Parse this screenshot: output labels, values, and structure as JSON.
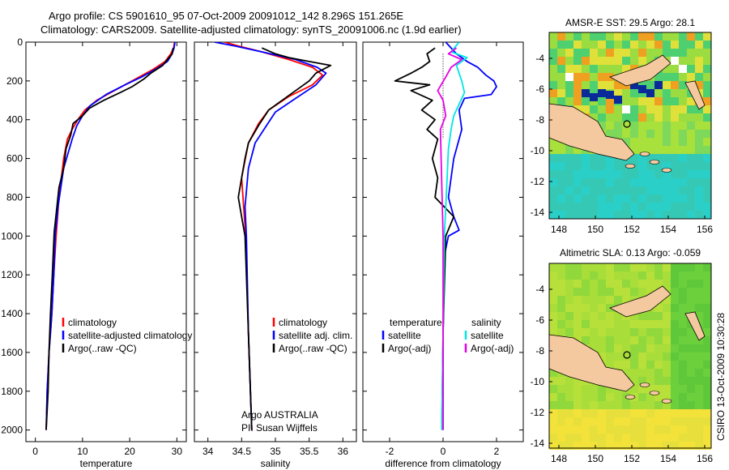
{
  "title": {
    "line1": "Argo profile: CS 5901610_95 07-Oct-2009 20091012_142 8.296S 151.265E",
    "line2": "Climatology: CARS2009. Satellite-adjusted climatology: synTS_20091006.nc (1.9d earlier)"
  },
  "colors": {
    "clim": "#ff0000",
    "sat": "#0000ff",
    "argo": "#000000",
    "cyan": "#00e5e5",
    "magenta": "#e600e6",
    "land": "#f5c9a0"
  },
  "depth_axis": {
    "ticks": [
      0,
      200,
      400,
      600,
      800,
      1000,
      1200,
      1400,
      1600,
      1800,
      2000
    ],
    "range": [
      0,
      2060
    ]
  },
  "chart_data": [
    {
      "type": "line",
      "name": "temperature",
      "xlabel": "temperature",
      "xlim": [
        -2,
        32
      ],
      "xticks": [
        0,
        10,
        20,
        30
      ],
      "legend": [
        "climatology",
        "satellite-adjusted climatology",
        "Argo(..raw -QC)"
      ],
      "series": [
        {
          "name": "climatology",
          "color": "#ff0000",
          "x": [
            29.5,
            29.3,
            28.7,
            27.5,
            25.0,
            22.0,
            19.0,
            16.0,
            13.0,
            10.5,
            9.0,
            7.8,
            6.8,
            6.0,
            5.0,
            4.4,
            3.9,
            3.5,
            3.2,
            2.9,
            2.7,
            2.5,
            2.4,
            2.3
          ],
          "y": [
            0,
            30,
            60,
            100,
            140,
            180,
            220,
            260,
            300,
            350,
            400,
            450,
            500,
            600,
            800,
            1000,
            1200,
            1400,
            1500,
            1600,
            1700,
            1800,
            1900,
            2000
          ]
        },
        {
          "name": "satellite-adjusted climatology",
          "color": "#0000ff",
          "x": [
            29.6,
            29.4,
            29.0,
            28.0,
            25.5,
            22.5,
            19.0,
            15.0,
            11.5,
            10.0,
            8.8,
            7.8,
            6.0,
            4.8,
            4.2,
            3.9,
            3.5,
            3.2,
            2.9,
            2.7,
            2.5,
            2.4,
            2.3
          ],
          "y": [
            0,
            30,
            60,
            100,
            140,
            180,
            220,
            270,
            330,
            380,
            430,
            500,
            650,
            850,
            1000,
            1200,
            1400,
            1500,
            1600,
            1700,
            1800,
            1900,
            2000
          ]
        },
        {
          "name": "Argo(..raw -QC)",
          "color": "#000000",
          "x": [
            29.2,
            29.0,
            28.0,
            27.0,
            24.5,
            23.0,
            20.5,
            18.0,
            14.5,
            11.5,
            10.0,
            8.0,
            7.5,
            6.5,
            6.0,
            5.0,
            4.0,
            3.6,
            3.2,
            2.9,
            2.7,
            2.4,
            2.3
          ],
          "y": [
            30,
            60,
            90,
            120,
            160,
            190,
            230,
            260,
            300,
            340,
            380,
            420,
            480,
            550,
            650,
            750,
            980,
            1200,
            1400,
            1600,
            1800,
            1950,
            2000
          ]
        }
      ]
    },
    {
      "type": "line",
      "name": "salinity",
      "xlabel": "salinity",
      "xlim": [
        33.8,
        36.2
      ],
      "xticks": [
        34,
        34.5,
        35,
        35.5,
        36
      ],
      "legend": [
        "climatology",
        "satellite adj. clim.",
        "Argo(..raw -QC)"
      ],
      "annotation": [
        "Argo AUSTRALIA",
        "PI: Susan Wijffels"
      ],
      "series": [
        {
          "name": "climatology",
          "color": "#ff0000",
          "x": [
            34.25,
            34.45,
            34.8,
            35.2,
            35.55,
            35.7,
            35.55,
            35.2,
            34.9,
            34.75,
            34.6,
            34.5,
            34.52,
            34.56,
            34.6,
            34.65
          ],
          "y": [
            0,
            20,
            50,
            90,
            130,
            170,
            220,
            280,
            350,
            420,
            520,
            700,
            800,
            1000,
            1500,
            2000
          ]
        },
        {
          "name": "satellite adj. clim.",
          "color": "#0000ff",
          "x": [
            34.1,
            34.4,
            34.8,
            35.3,
            35.62,
            35.75,
            35.6,
            35.3,
            35.0,
            34.85,
            34.7,
            34.6,
            34.55,
            34.57,
            34.6,
            34.65
          ],
          "y": [
            0,
            20,
            50,
            90,
            130,
            160,
            220,
            290,
            360,
            440,
            520,
            650,
            850,
            1000,
            1500,
            2000
          ]
        },
        {
          "name": "Argo(..raw -QC)",
          "color": "#000000",
          "x": [
            34.8,
            35.0,
            35.2,
            35.5,
            35.82,
            35.6,
            35.5,
            35.3,
            35.1,
            34.9,
            34.75,
            34.6,
            34.55,
            34.5,
            34.45,
            34.5,
            34.55,
            34.6,
            34.65
          ],
          "y": [
            30,
            60,
            80,
            100,
            120,
            160,
            200,
            250,
            300,
            350,
            430,
            520,
            600,
            700,
            800,
            900,
            1000,
            1500,
            2000
          ]
        }
      ]
    },
    {
      "type": "line",
      "name": "difference",
      "xlabel": "difference from climatology",
      "xlim": [
        -3,
        3
      ],
      "xticks": [
        -2,
        0,
        2
      ],
      "legend_left": [
        "temperature",
        "satellite",
        "Argo(-adj)"
      ],
      "legend_right": [
        "salinity",
        "satellite",
        "Argo(-adj)"
      ],
      "series": [
        {
          "name": "temperature satellite",
          "color": "#0000ff",
          "x": [
            0.1,
            0.5,
            0.9,
            1.3,
            1.6,
            1.9,
            2.0,
            1.8,
            0.8,
            0.6,
            0.7,
            0.4,
            0.3,
            0.2,
            0.4,
            0.6,
            0.2,
            0.05,
            0.0,
            0.0
          ],
          "y": [
            0,
            60,
            100,
            130,
            170,
            200,
            230,
            270,
            290,
            350,
            450,
            600,
            700,
            800,
            900,
            970,
            1000,
            1100,
            1500,
            2000
          ]
        },
        {
          "name": "temperature Argo(-adj)",
          "color": "#000000",
          "x": [
            -0.3,
            -0.6,
            -0.5,
            -0.8,
            -1.2,
            -1.8,
            -0.5,
            -1.2,
            -0.4,
            -0.8,
            -0.3,
            -0.6,
            -0.2,
            -0.4,
            -0.2,
            -0.3,
            0.4,
            0.1,
            0.0,
            -0.05
          ],
          "y": [
            30,
            60,
            100,
            130,
            160,
            200,
            220,
            250,
            300,
            350,
            400,
            450,
            500,
            600,
            700,
            800,
            900,
            1000,
            1500,
            2000
          ]
        },
        {
          "name": "salinity satellite",
          "color": "#00e5e5",
          "x": [
            0.6,
            0.3,
            0.9,
            0.5,
            0.6,
            0.7,
            0.8,
            0.6,
            0.4,
            0.3,
            0.2,
            0.15,
            0.1,
            0.05,
            0.0,
            -0.05
          ],
          "y": [
            0,
            50,
            80,
            120,
            160,
            200,
            260,
            320,
            380,
            450,
            550,
            700,
            850,
            1000,
            1500,
            2000
          ]
        },
        {
          "name": "salinity Argo(-adj)",
          "color": "#e600e6",
          "x": [
            0.5,
            0.2,
            0.7,
            0.3,
            0.1,
            -0.2,
            0.0,
            0.1,
            -0.1,
            0.0,
            0.0
          ],
          "y": [
            30,
            60,
            90,
            130,
            180,
            250,
            300,
            380,
            450,
            1000,
            2000
          ]
        }
      ]
    }
  ],
  "maps": [
    {
      "title": "AMSR-E SST: 29.5 Argo: 28.1",
      "xticks": [
        "148",
        "150",
        "152",
        "154",
        "156"
      ],
      "yticks": [
        "-4",
        "-6",
        "-8",
        "-10",
        "-12",
        "-14"
      ]
    },
    {
      "title": "Altimetric SLA: 0.13 Argo: -0.059",
      "xticks": [
        "148",
        "150",
        "152",
        "154",
        "156"
      ],
      "yticks": [
        "-4",
        "-6",
        "-8",
        "-10",
        "-12",
        "-14"
      ]
    }
  ],
  "footer": {
    "credit": "CSIRO 13-Oct-2009 10:30:28"
  }
}
